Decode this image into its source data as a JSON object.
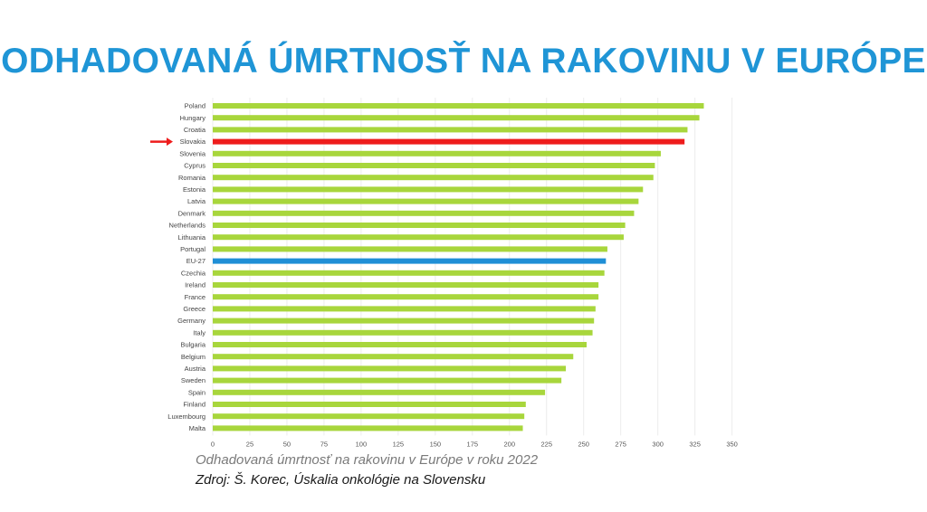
{
  "page": {
    "title": "ODHADOVANÁ ÚMRTNOSŤ NA RAKOVINU V EURÓPE",
    "caption": "Odhadovaná úmrtnosť na rakovinu v Európe v roku 2022",
    "source": "Zdroj: Š. Korec, Úskalia onkológie na Slovensku"
  },
  "chart_data": {
    "type": "bar",
    "orientation": "horizontal",
    "categories": [
      "Poland",
      "Hungary",
      "Croatia",
      "Slovakia",
      "Slovenia",
      "Cyprus",
      "Romania",
      "Estonia",
      "Latvia",
      "Denmark",
      "Netherlands",
      "Lithuania",
      "Portugal",
      "EU-27",
      "Czechia",
      "Ireland",
      "France",
      "Greece",
      "Germany",
      "Italy",
      "Bulgaria",
      "Belgium",
      "Austria",
      "Sweden",
      "Spain",
      "Finland",
      "Luxembourg",
      "Malta"
    ],
    "values": [
      331,
      328,
      320,
      318,
      302,
      298,
      297,
      290,
      287,
      284,
      278,
      277,
      266,
      265,
      264,
      260,
      260,
      258,
      257,
      256,
      252,
      243,
      238,
      235,
      224,
      211,
      210,
      209
    ],
    "highlight": {
      "Slovakia": "#ee1c1c",
      "EU-27": "#1f8fd6"
    },
    "default_color": "#a8d63c",
    "highlight_marker": "arrow-icon",
    "marker_color": "#ee1c1c",
    "xlim": [
      0,
      360
    ],
    "xticks": [
      0,
      25,
      50,
      75,
      100,
      125,
      150,
      175,
      200,
      225,
      250,
      275,
      300,
      325,
      350
    ],
    "grid": true,
    "xlabel": "",
    "ylabel": ""
  }
}
